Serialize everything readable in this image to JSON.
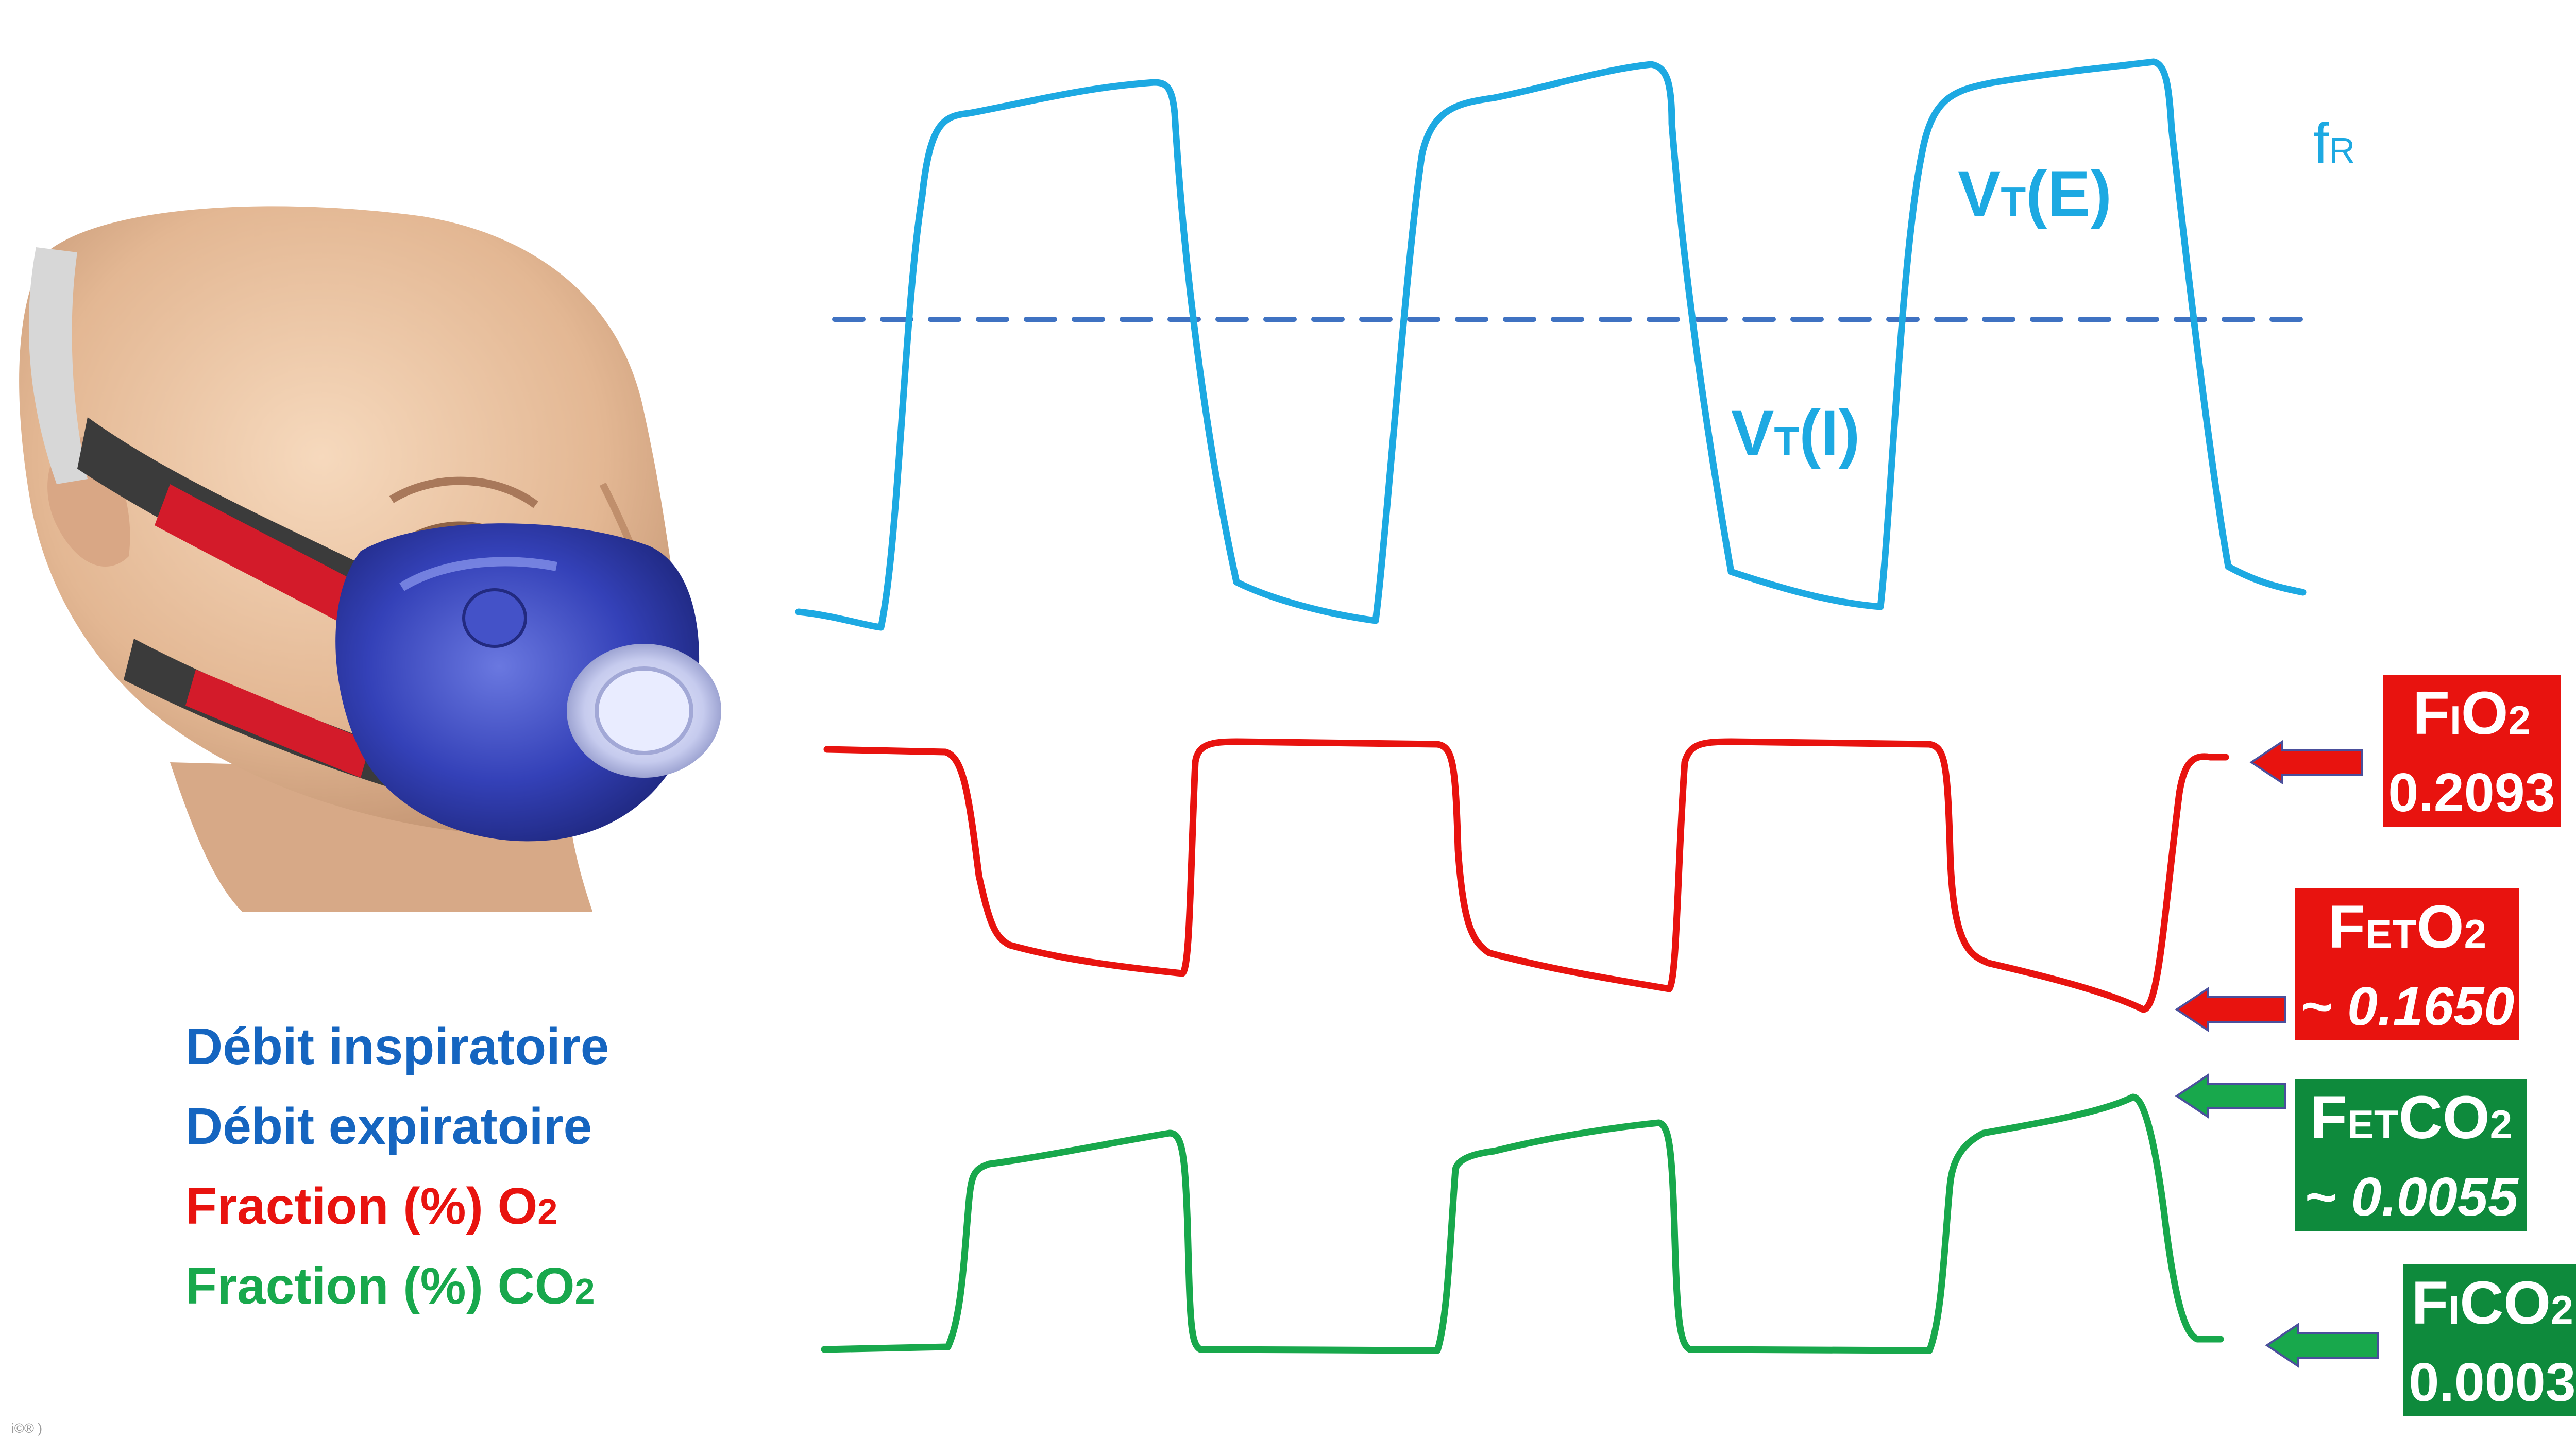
{
  "colors": {
    "volume_trace": "#1da9e2",
    "baseline_dash": "#3f72c2",
    "o2": "#e8130f",
    "co2": "#18a84c",
    "box_red": "#e8130f",
    "box_green": "#0e8a3c",
    "legend_blue": "#1565c0",
    "legend_red": "#e8130f",
    "legend_green": "#18a84c"
  },
  "legend": [
    {
      "text": "Débit inspiratoire",
      "color": "legend_blue"
    },
    {
      "text": "Débit expiratoire",
      "color": "legend_blue"
    },
    {
      "text": "Fraction (%) O",
      "sub": "2",
      "color": "legend_red"
    },
    {
      "text": "Fraction (%) CO",
      "sub": "2",
      "color": "legend_green"
    }
  ],
  "trace_labels": {
    "freq": {
      "main": "f",
      "sub": "R"
    },
    "vt_exp": {
      "main1": "V",
      "sub": "T",
      "main2": "(E)"
    },
    "vt_insp": {
      "main1": "V",
      "sub": "T",
      "main2": "(I)"
    }
  },
  "boxes": {
    "fio2": {
      "pre": "F",
      "sub": "I",
      "post": "O",
      "post_sub": "2",
      "value": "0.2093"
    },
    "feto2": {
      "pre": "F",
      "sub": "ET",
      "post": "O",
      "post_sub": "2",
      "value": "~ 0.1650"
    },
    "fetco2": {
      "pre": "F",
      "sub": "ET",
      "post": "CO",
      "post_sub": "2",
      "value": "~ 0.0055"
    },
    "fico2": {
      "pre": "F",
      "sub": "I",
      "post": "CO",
      "post_sub": "2",
      "value": "0.0003"
    }
  },
  "image": {
    "subject": "head with breathing mask",
    "icon": "mask-illustration"
  },
  "corner_mark": "i©® )"
}
